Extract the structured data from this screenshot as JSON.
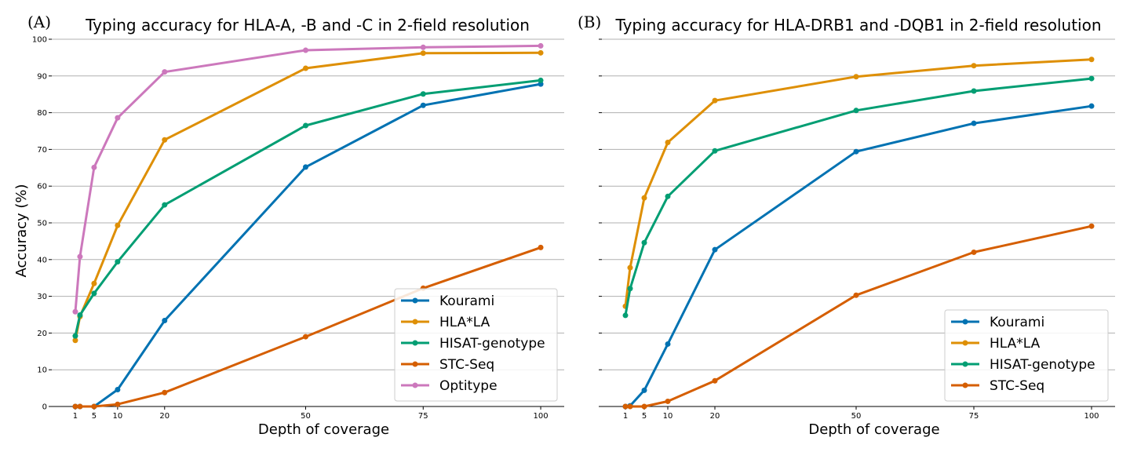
{
  "chart_data": [
    {
      "type": "line",
      "panel_label": "(A)",
      "title": "Typing accuracy for HLA-A, -B and -C in 2-field resolution",
      "xlabel": "Depth of coverage",
      "ylabel": "Accuracy (%)",
      "x": [
        1,
        2,
        5,
        10,
        20,
        50,
        75,
        100
      ],
      "xticks": [
        1,
        5,
        10,
        20,
        50,
        75,
        100
      ],
      "xlim": [
        -4,
        105
      ],
      "ylim": [
        0,
        100
      ],
      "yticks": [
        0,
        10,
        20,
        30,
        40,
        50,
        60,
        70,
        80,
        90,
        100
      ],
      "grid": "horizontal",
      "legend_position": "lower-right",
      "series": [
        {
          "name": "Kourami",
          "color": "#0072b2",
          "values": [
            0,
            0,
            0,
            4.6,
            23.4,
            65.2,
            82.0,
            87.8
          ]
        },
        {
          "name": "HLA*LA",
          "color": "#de8f05",
          "values": [
            18.0,
            24.5,
            33.5,
            49.3,
            72.6,
            92.1,
            96.2,
            96.3
          ]
        },
        {
          "name": "HISAT-genotype",
          "color": "#029e73",
          "values": [
            19.2,
            24.9,
            30.8,
            39.4,
            54.9,
            76.5,
            85.1,
            88.8
          ]
        },
        {
          "name": "STC-Seq",
          "color": "#d55e00",
          "values": [
            0,
            0,
            0,
            0.6,
            3.8,
            19.0,
            32.2,
            43.3
          ]
        },
        {
          "name": "Optitype",
          "color": "#cc78bc",
          "values": [
            25.8,
            40.8,
            65.1,
            78.6,
            91.1,
            97.0,
            97.8,
            98.2
          ]
        }
      ]
    },
    {
      "type": "line",
      "panel_label": "(B)",
      "title": "Typing accuracy for HLA-DRB1 and -DQB1 in 2-field resolution",
      "xlabel": "Depth of coverage",
      "ylabel": "",
      "x": [
        1,
        2,
        5,
        10,
        20,
        50,
        75,
        100
      ],
      "xticks": [
        1,
        5,
        10,
        20,
        50,
        75,
        100
      ],
      "xlim": [
        -4,
        105
      ],
      "ylim": [
        0,
        100
      ],
      "yticks": [
        0,
        10,
        20,
        30,
        40,
        50,
        60,
        70,
        80,
        90,
        100
      ],
      "show_ytick_labels": false,
      "grid": "horizontal",
      "legend_position": "lower-right",
      "series": [
        {
          "name": "Kourami",
          "color": "#0072b2",
          "values": [
            0,
            0.2,
            4.4,
            17.0,
            42.7,
            69.4,
            77.1,
            81.8
          ]
        },
        {
          "name": "HLA*LA",
          "color": "#de8f05",
          "values": [
            27.3,
            37.8,
            56.8,
            71.9,
            83.3,
            89.8,
            92.8,
            94.5
          ]
        },
        {
          "name": "HISAT-genotype",
          "color": "#029e73",
          "values": [
            24.8,
            32.1,
            44.6,
            57.2,
            69.6,
            80.6,
            85.9,
            89.3
          ]
        },
        {
          "name": "STC-Seq",
          "color": "#d55e00",
          "values": [
            0,
            0,
            0,
            1.4,
            7.0,
            30.3,
            42.0,
            49.1
          ]
        }
      ]
    }
  ]
}
